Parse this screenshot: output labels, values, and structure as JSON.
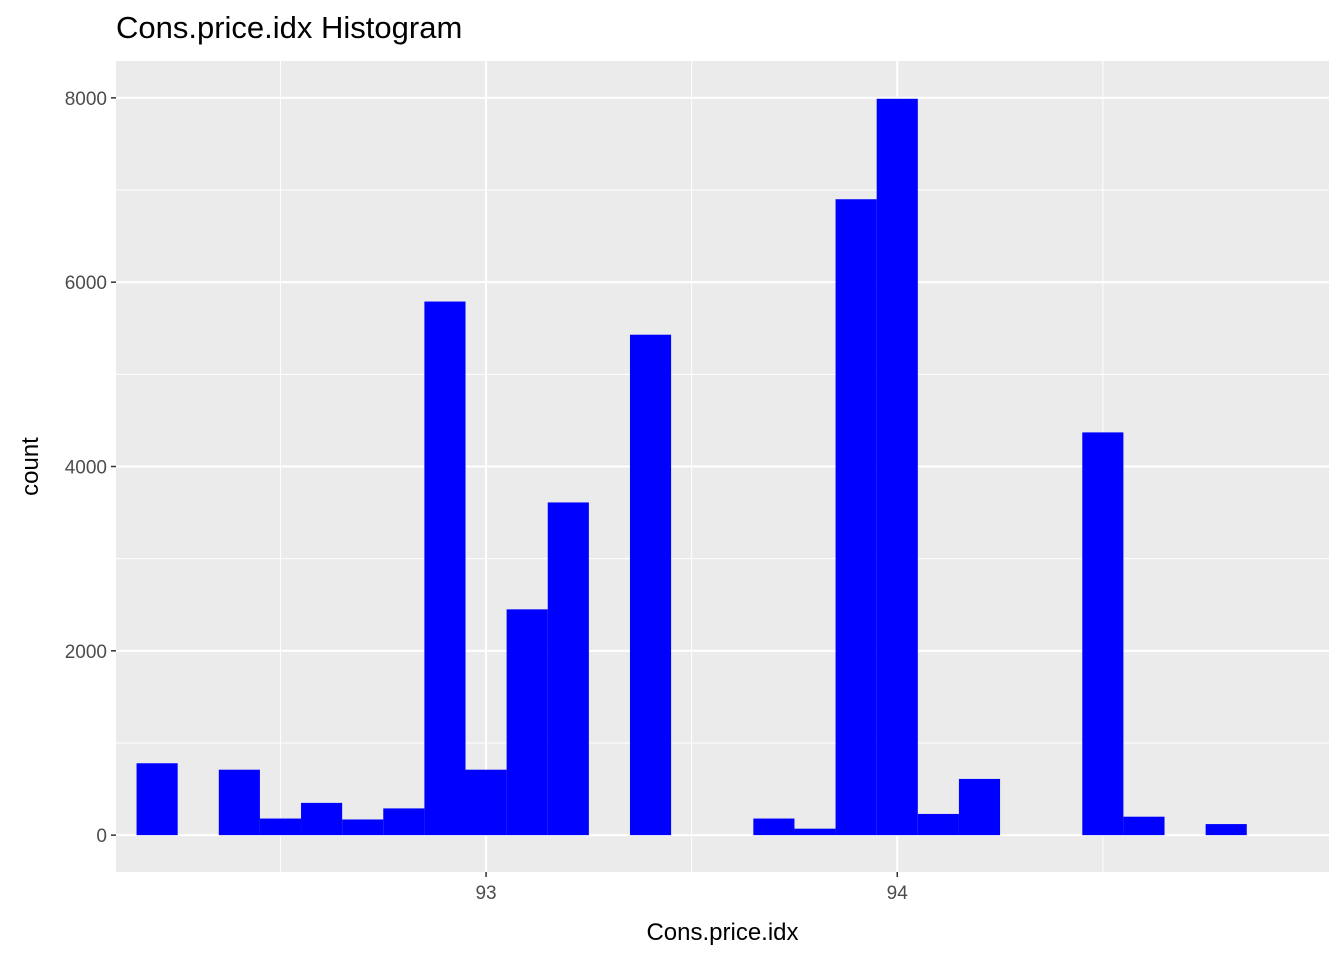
{
  "chart_data": {
    "type": "bar",
    "title": "Cons.price.idx Histogram",
    "xlabel": "Cons.price.idx",
    "ylabel": "count",
    "bin_width": 0.1,
    "xlim": [
      92.1,
      95.05
    ],
    "ylim": [
      -400,
      8400
    ],
    "x_ticks": [
      93,
      94
    ],
    "x_tick_labels": [
      "93",
      "94"
    ],
    "y_ticks": [
      0,
      2000,
      4000,
      6000,
      8000
    ],
    "y_tick_labels": [
      "0",
      "2000",
      "4000",
      "6000",
      "8000"
    ],
    "grid": true,
    "bar_color": "#0000ff",
    "panel_color": "#ebebeb",
    "grid_color": "#ffffff",
    "bins": [
      {
        "x": 92.2,
        "count": 780
      },
      {
        "x": 92.4,
        "count": 710
      },
      {
        "x": 92.5,
        "count": 180
      },
      {
        "x": 92.6,
        "count": 350
      },
      {
        "x": 92.7,
        "count": 170
      },
      {
        "x": 92.8,
        "count": 290
      },
      {
        "x": 92.9,
        "count": 5790
      },
      {
        "x": 93.0,
        "count": 710
      },
      {
        "x": 93.1,
        "count": 2450
      },
      {
        "x": 93.2,
        "count": 3610
      },
      {
        "x": 93.4,
        "count": 5430
      },
      {
        "x": 93.7,
        "count": 180
      },
      {
        "x": 93.8,
        "count": 70
      },
      {
        "x": 93.9,
        "count": 6900
      },
      {
        "x": 94.0,
        "count": 7990
      },
      {
        "x": 94.1,
        "count": 230
      },
      {
        "x": 94.2,
        "count": 610
      },
      {
        "x": 94.5,
        "count": 4370
      },
      {
        "x": 94.6,
        "count": 200
      },
      {
        "x": 94.8,
        "count": 120
      }
    ]
  }
}
